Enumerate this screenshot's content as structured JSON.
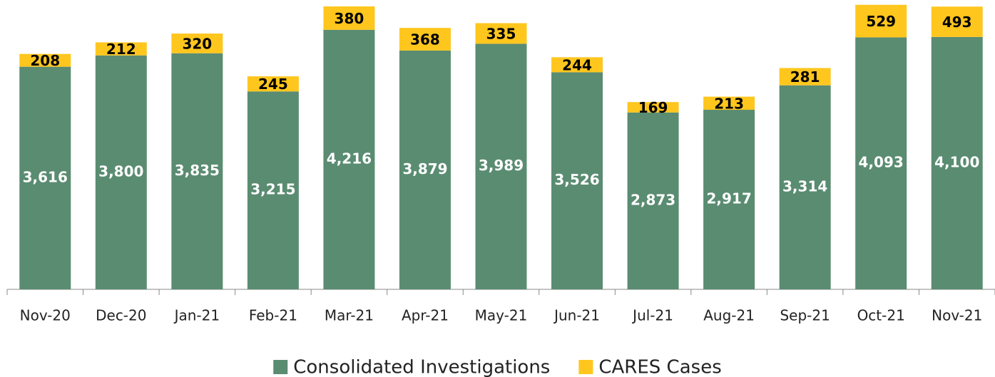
{
  "chart_data": {
    "type": "stacked_bar",
    "categories": [
      "Nov-20",
      "Dec-20",
      "Jan-21",
      "Feb-21",
      "Mar-21",
      "Apr-21",
      "May-21",
      "Jun-21",
      "Jul-21",
      "Aug-21",
      "Sep-21",
      "Oct-21",
      "Nov-21"
    ],
    "series": [
      {
        "name": "Consolidated Investigations",
        "color": "#5a8c71",
        "values": [
          3616,
          3800,
          3835,
          3215,
          4216,
          3879,
          3989,
          3526,
          2873,
          2917,
          3314,
          4093,
          4100
        ],
        "value_labels": [
          "3,616",
          "3,800",
          "3,835",
          "3,215",
          "4,216",
          "3,879",
          "3,989",
          "3,526",
          "2,873",
          "2,917",
          "3,314",
          "4,093",
          "4,100"
        ]
      },
      {
        "name": "CARES Cases",
        "color": "#ffc61e",
        "values": [
          208,
          212,
          320,
          245,
          380,
          368,
          335,
          244,
          169,
          213,
          281,
          529,
          493
        ]
      }
    ],
    "ylim": [
      0,
      4700
    ],
    "legend": "bottom"
  }
}
